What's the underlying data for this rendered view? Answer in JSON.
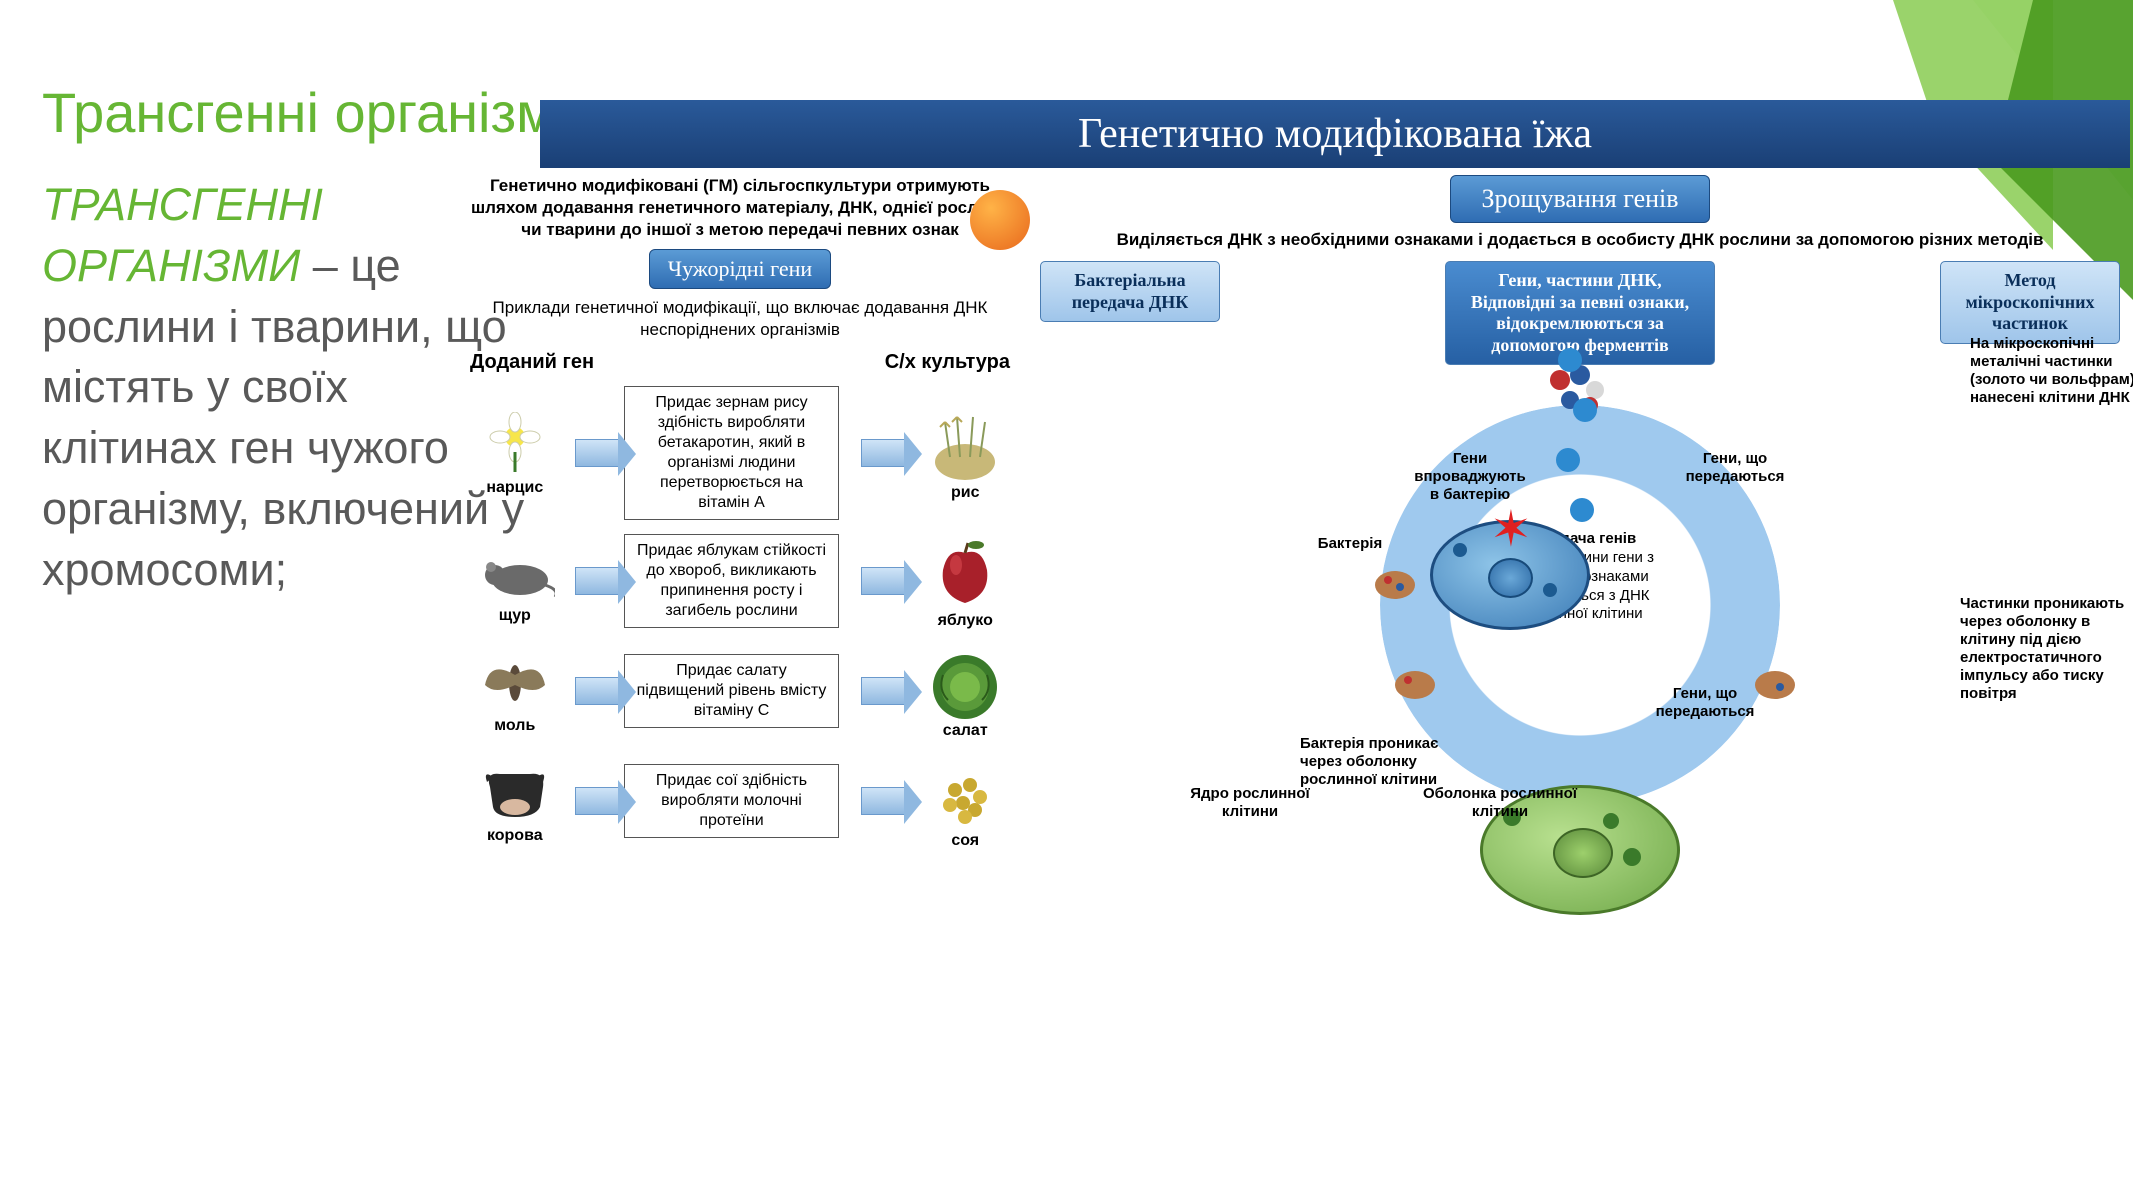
{
  "colors": {
    "accent_green": "#66b634",
    "banner_bg": "#1f497d",
    "pill_blue": "#3a78c2",
    "text_gray": "#595959"
  },
  "slide": {
    "title": "Трансгенні організми.",
    "term": "ТРАНСГЕННІ ОРГАНІЗМИ",
    "definition": " – це рослини і тварини, що містять у своїх клітинах ген чужого організму, включений у хромосоми;"
  },
  "banner": "Генетично модифікована їжа",
  "left": {
    "intro": "Генетично модифіковані (ГМ) сільгоспкультури отримують шляхом додавання генетичного матеріалу, ДНК, однієї рослини чи тварини до іншої з метою передачі певних ознак",
    "pill": "Чужорідні гени",
    "sub": "Приклади генетичної модифікації, що включає додавання ДНК неспоріднених організмів",
    "header_left": "Доданий ген",
    "header_right": "С/х культура",
    "rows": [
      {
        "organism": "нарцис",
        "icon": "flower",
        "desc": "Придає зернам рису здібність виробляти бетакаротин, який в організмі людини перетворюється на вітамін А",
        "crop": "рис",
        "crop_icon": "grain"
      },
      {
        "organism": "щур",
        "icon": "rat",
        "desc": "Придає яблукам стійкості до хвороб, викликають припинення росту і загибель рослини",
        "crop": "яблуко",
        "crop_icon": "apple"
      },
      {
        "organism": "моль",
        "icon": "moth",
        "desc": "Придає салату підвищений рівень вмісту вітаміну С",
        "crop": "салат",
        "crop_icon": "lettuce"
      },
      {
        "organism": "корова",
        "icon": "cow",
        "desc": "Придає сої здібність виробляти молочні протеїни",
        "crop": "соя",
        "crop_icon": "soy"
      }
    ]
  },
  "right": {
    "top_pill": "Зрощування генів",
    "intro": "Виділяється ДНК з необхідними ознаками і додається в особисту ДНК рослини за допомогою різних методів",
    "methods": {
      "left": "Бактеріальна передача ДНК",
      "center": "Гени, частини ДНК, Відповідні за певні ознаки, відокремлюються за допомогою ферментів",
      "right": "Метод мікроскопічних частинок"
    },
    "method_right_note": "На мікроскопічні металічні частинки (золото чи вольфрам) нанесені клітини ДНК",
    "cycle": {
      "center_title": "Передача генів",
      "center_text": "В ядро клітини гени з заданими ознаками комбінуються з ДНК рослинної клітини",
      "label_top_left": "Гени впроваджують в бактерію",
      "label_top_right": "Гени, що передаються",
      "label_bottom_right": "Гени, що передаються",
      "label_left": "Бактерія",
      "label_bottom_left": "Бактерія проникає через оболонку рослинної клітини"
    },
    "cell_labels": {
      "nucleus": "Ядро рослинної клітини",
      "membrane": "Оболонка рослинної клітини"
    },
    "particle_note": "Частинки проникають через оболонку в клітину під дією електростатичного імпульсу або тиску повітря"
  }
}
